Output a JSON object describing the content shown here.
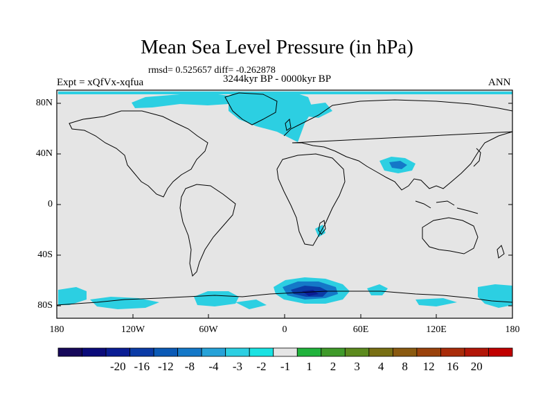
{
  "title": "Mean Sea Level Pressure (in hPa)",
  "stats": "rmsd= 0.525657 diff= -0.262878",
  "period": "3244kyr BP - 0000kyr BP",
  "experiment": "Expt = xQfVx-xqfua",
  "season": "ANN",
  "map": {
    "projection": "cylindrical equidistant",
    "lon_range": [
      -180,
      180
    ],
    "lat_range": [
      -90,
      90
    ],
    "background_color": "#e5e5e5",
    "lat_ticks": [
      "80N",
      "40N",
      "0",
      "40S",
      "80S"
    ],
    "lon_ticks": [
      "180",
      "120W",
      "60W",
      "0",
      "60E",
      "120E",
      "180"
    ],
    "anomaly_regions": [
      {
        "name": "north-atlantic-arctic",
        "lon": [
          -40,
          20
        ],
        "lat": [
          45,
          85
        ],
        "level": "-1 to -2"
      },
      {
        "name": "greenland-arctic",
        "lon": [
          -120,
          -20
        ],
        "lat": [
          70,
          88
        ],
        "level": "-1 to -2"
      },
      {
        "name": "tibetan-plateau",
        "lon": [
          75,
          100
        ],
        "lat": [
          28,
          38
        ],
        "level": "-2 to -4"
      },
      {
        "name": "east-antarctica",
        "lon": [
          -10,
          60
        ],
        "lat": [
          -85,
          -65
        ],
        "level": "-4 to -12"
      },
      {
        "name": "south-pacific-antarctic",
        "lon": [
          -180,
          -110
        ],
        "lat": [
          -85,
          -65
        ],
        "level": "-1 to -3"
      },
      {
        "name": "madagascar",
        "lon": [
          42,
          52
        ],
        "lat": [
          -25,
          -15
        ],
        "level": "-1 to -2"
      }
    ]
  },
  "colorbar": {
    "levels": [
      "-20",
      "-16",
      "-12",
      "-8",
      "-4",
      "-3",
      "-2",
      "-1",
      "1",
      "2",
      "3",
      "4",
      "8",
      "12",
      "16",
      "20"
    ],
    "colors": [
      "#16085a",
      "#0b0b7a",
      "#0a1d94",
      "#0b3ba6",
      "#0b5ab6",
      "#1478c8",
      "#26a2d8",
      "#2ccfe2",
      "#1ae2e2",
      "#e5e5e5",
      "#21b33c",
      "#3f9a2a",
      "#5c8a1e",
      "#786f14",
      "#8a5a10",
      "#9a420c",
      "#a92c0a",
      "#b21608",
      "#c00000"
    ]
  }
}
